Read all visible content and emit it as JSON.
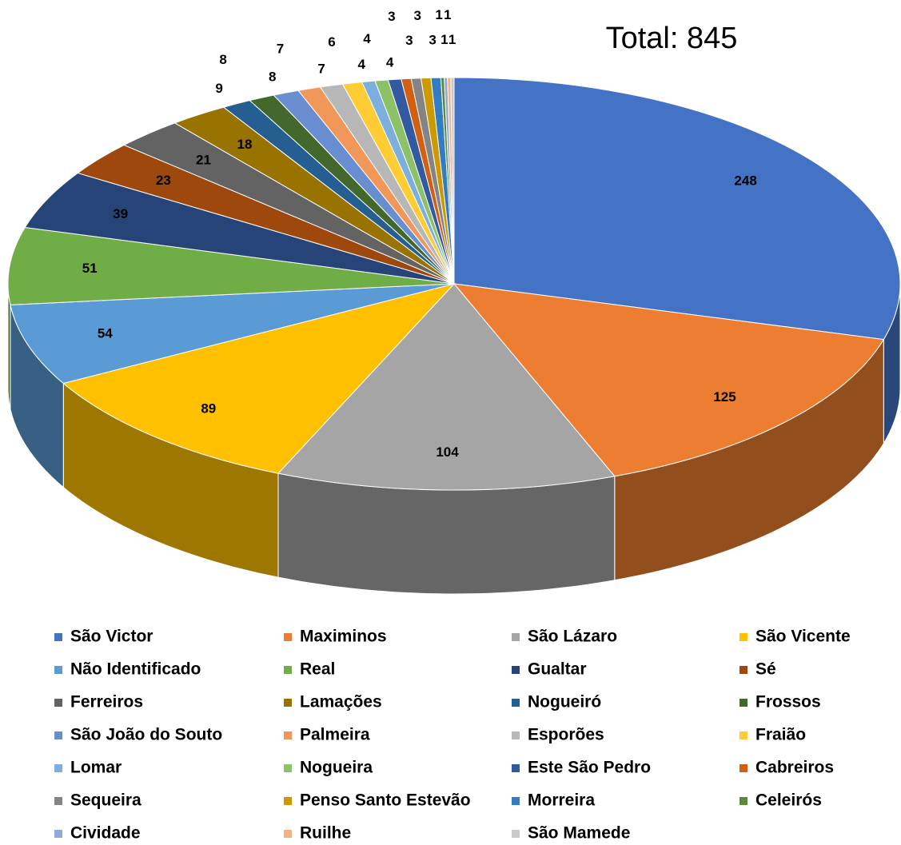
{
  "chart_data": {
    "type": "pie3d",
    "annotation": "Total: 845",
    "categories": [
      "São Victor",
      "Maximinos",
      "São Lázaro",
      "São Vicente",
      "Não Identificado",
      "Real",
      "Gualtar",
      "Sé",
      "Ferreiros",
      "Lamações",
      "Nogueiró",
      "Frossos",
      "São João do Souto",
      "Palmeira",
      "Esporões",
      "Fraião",
      "Lomar",
      "Nogueira",
      "Este São Pedro",
      "Cabreiros",
      "Sequeira",
      "Penso Santo Estevão",
      "Morreira",
      "Celeirós",
      "Cividade",
      "Ruilhe",
      "São Mamede"
    ],
    "values": [
      248,
      125,
      104,
      89,
      54,
      51,
      39,
      23,
      21,
      18,
      9,
      8,
      8,
      7,
      7,
      6,
      4,
      4,
      4,
      3,
      3,
      3,
      3,
      1,
      1,
      1,
      1
    ],
    "colors": [
      "#4472c4",
      "#ed7d31",
      "#a5a5a5",
      "#ffc000",
      "#5b9bd5",
      "#70ad47",
      "#264478",
      "#9e480e",
      "#636363",
      "#997300",
      "#255e91",
      "#43682b",
      "#698ed0",
      "#f1975a",
      "#b7b7b7",
      "#ffcd33",
      "#7cafdd",
      "#8cc168",
      "#335aa1",
      "#d26012",
      "#848484",
      "#cc9a00",
      "#327dc2",
      "#5a8a39",
      "#8faadc",
      "#f4b183",
      "#c9c9c9"
    ],
    "legend": "bottom"
  }
}
